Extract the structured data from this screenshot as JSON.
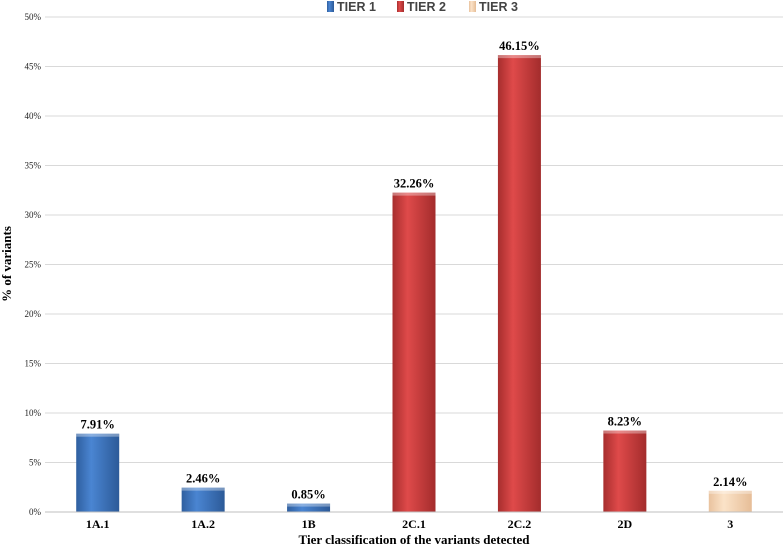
{
  "chart_data": {
    "type": "bar",
    "categories": [
      "1A.1",
      "1A.2",
      "1B",
      "2C.1",
      "2C.2",
      "2D",
      "3"
    ],
    "values": [
      7.91,
      2.46,
      0.85,
      32.26,
      46.15,
      8.23,
      2.14
    ],
    "value_labels": [
      "7.91%",
      "2.46%",
      "0.85%",
      "32.26%",
      "46.15%",
      "8.23%",
      "2.14%"
    ],
    "tiers": [
      "TIER 1",
      "TIER 1",
      "TIER 1",
      "TIER 2",
      "TIER 2",
      "TIER 2",
      "TIER 3"
    ],
    "legend": [
      {
        "name": "TIER 1",
        "color": "#3f76c4"
      },
      {
        "name": "TIER 2",
        "color": "#d64545"
      },
      {
        "name": "TIER 3",
        "color": "#f6d6b6"
      }
    ],
    "legend_position": "top-center",
    "xlabel": "Tier classification of the variants detected",
    "ylabel": "% of variants",
    "ylim": [
      0,
      50
    ],
    "yticks": [
      0,
      5,
      10,
      15,
      20,
      25,
      30,
      35,
      40,
      45,
      50
    ],
    "ytick_labels": [
      "0%",
      "5%",
      "10%",
      "15%",
      "20%",
      "25%",
      "30%",
      "35%",
      "40%",
      "45%",
      "50%"
    ],
    "grid": true
  }
}
